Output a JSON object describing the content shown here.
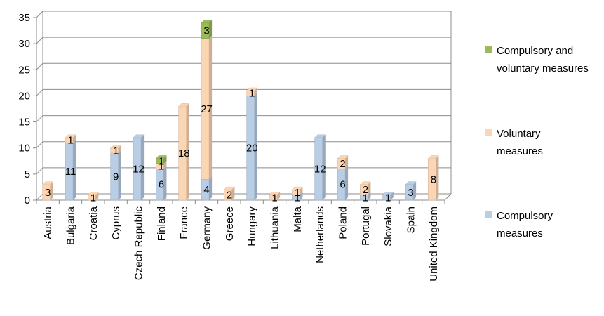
{
  "chart_data": {
    "type": "bar",
    "stacked": true,
    "categories": [
      "Austria",
      "Bulgaria",
      "Croatia",
      "Cyprus",
      "Czech Republic",
      "Finland",
      "France",
      "Germany",
      "Greece",
      "Hungary",
      "Lithuania",
      "Malta",
      "Netherlands",
      "Poland",
      "Portugal",
      "Slovakia",
      "Spain",
      "United Kingdom"
    ],
    "series": [
      {
        "name": "Compulsory measures",
        "color": "#b9cde5",
        "values": [
          0,
          11,
          0,
          9,
          12,
          6,
          0,
          4,
          0,
          20,
          0,
          1,
          12,
          6,
          1,
          1,
          3,
          0
        ]
      },
      {
        "name": "Voluntary measures",
        "color": "#fcd5b5",
        "values": [
          3,
          1,
          1,
          1,
          0,
          1,
          18,
          27,
          2,
          1,
          1,
          1,
          0,
          2,
          2,
          0,
          0,
          8
        ]
      },
      {
        "name": "Compulsory and voluntary measures",
        "color": "#9bbb59",
        "values": [
          0,
          0,
          0,
          0,
          0,
          1,
          0,
          3,
          0,
          0,
          0,
          0,
          0,
          0,
          0,
          0,
          0,
          0
        ]
      }
    ],
    "data_labels": [
      [
        null,
        11,
        null,
        9,
        12,
        6,
        null,
        4,
        null,
        20,
        null,
        1,
        12,
        6,
        1,
        1,
        3,
        null
      ],
      [
        3,
        1,
        1,
        1,
        null,
        1,
        18,
        27,
        2,
        1,
        1,
        1,
        null,
        2,
        2,
        null,
        null,
        8
      ],
      [
        null,
        null,
        null,
        null,
        null,
        1,
        null,
        3,
        null,
        null,
        null,
        null,
        null,
        null,
        null,
        null,
        null,
        null
      ]
    ],
    "ylim": [
      0,
      35
    ],
    "yticks": [
      0,
      5,
      10,
      15,
      20,
      25,
      30,
      35
    ],
    "grid": true,
    "legend_position": "right",
    "legend_order": [
      "Compulsory and voluntary measures",
      "Voluntary measures",
      "Compulsory measures"
    ],
    "title": "",
    "xlabel": "",
    "ylabel": ""
  },
  "legend": {
    "items": [
      {
        "label": "Compulsory and voluntary measures",
        "color": "#9bbb59"
      },
      {
        "label": "Voluntary measures",
        "color": "#fcd5b5"
      },
      {
        "label": "Compulsory measures",
        "color": "#b9cde5"
      }
    ]
  }
}
